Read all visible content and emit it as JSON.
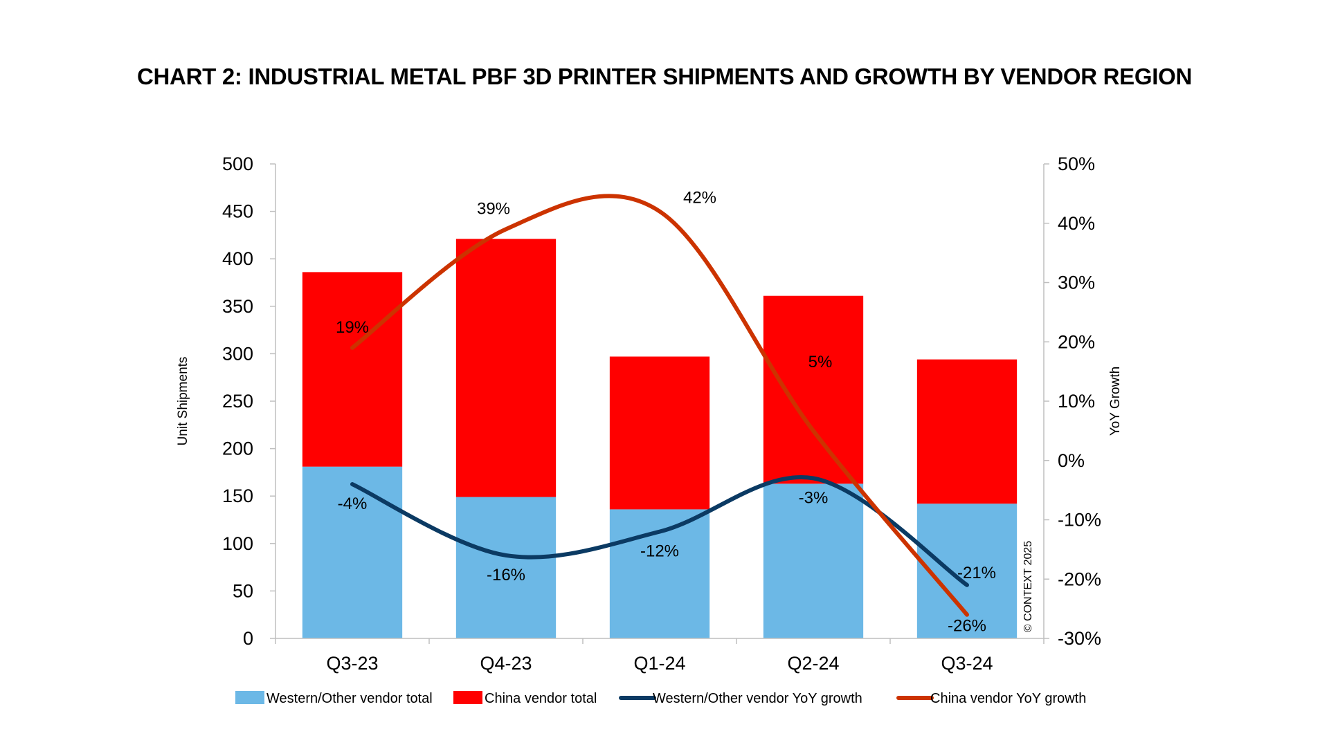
{
  "chart_data": {
    "type": "bar",
    "title": "CHART 2: INDUSTRIAL METAL PBF 3D PRINTER SHIPMENTS AND GROWTH BY VENDOR REGION",
    "categories": [
      "Q3-23",
      "Q4-23",
      "Q1-24",
      "Q2-24",
      "Q3-24"
    ],
    "stacked": true,
    "ylabel": "Unit Shipments",
    "ylim": [
      0,
      500
    ],
    "yticks": [
      "0",
      "50",
      "100",
      "150",
      "200",
      "250",
      "300",
      "350",
      "400",
      "450",
      "500"
    ],
    "y2label": "YoY Growth",
    "y2lim": [
      -30,
      50
    ],
    "y2ticks": [
      "-30%",
      "-20%",
      "-10%",
      "0%",
      "10%",
      "20%",
      "30%",
      "40%",
      "50%"
    ],
    "grid": false,
    "legend_position": "bottom",
    "series": [
      {
        "name": "Western/Other vendor total",
        "kind": "bar",
        "axis": "left",
        "color": "#6cb8e6",
        "values": [
          181,
          149,
          136,
          163,
          142
        ]
      },
      {
        "name": "China vendor total",
        "kind": "bar",
        "axis": "left",
        "color": "#ff0000",
        "values": [
          205,
          272,
          161,
          198,
          152
        ]
      },
      {
        "name": "Western/Other vendor YoY growth",
        "kind": "line",
        "axis": "right",
        "color": "#0b3a63",
        "values": [
          -4,
          -16,
          -12,
          -3,
          -21
        ],
        "labels": [
          "-4%",
          "-16%",
          "-12%",
          "-3%",
          "-21%"
        ]
      },
      {
        "name": "China vendor YoY growth",
        "kind": "line",
        "axis": "right",
        "color": "#cc3300",
        "values": [
          19,
          39,
          42,
          5,
          -26
        ],
        "labels": [
          "19%",
          "39%",
          "42%",
          "5%",
          "-26%"
        ]
      }
    ],
    "annotations": [
      "© CONTEXT 2025"
    ]
  }
}
